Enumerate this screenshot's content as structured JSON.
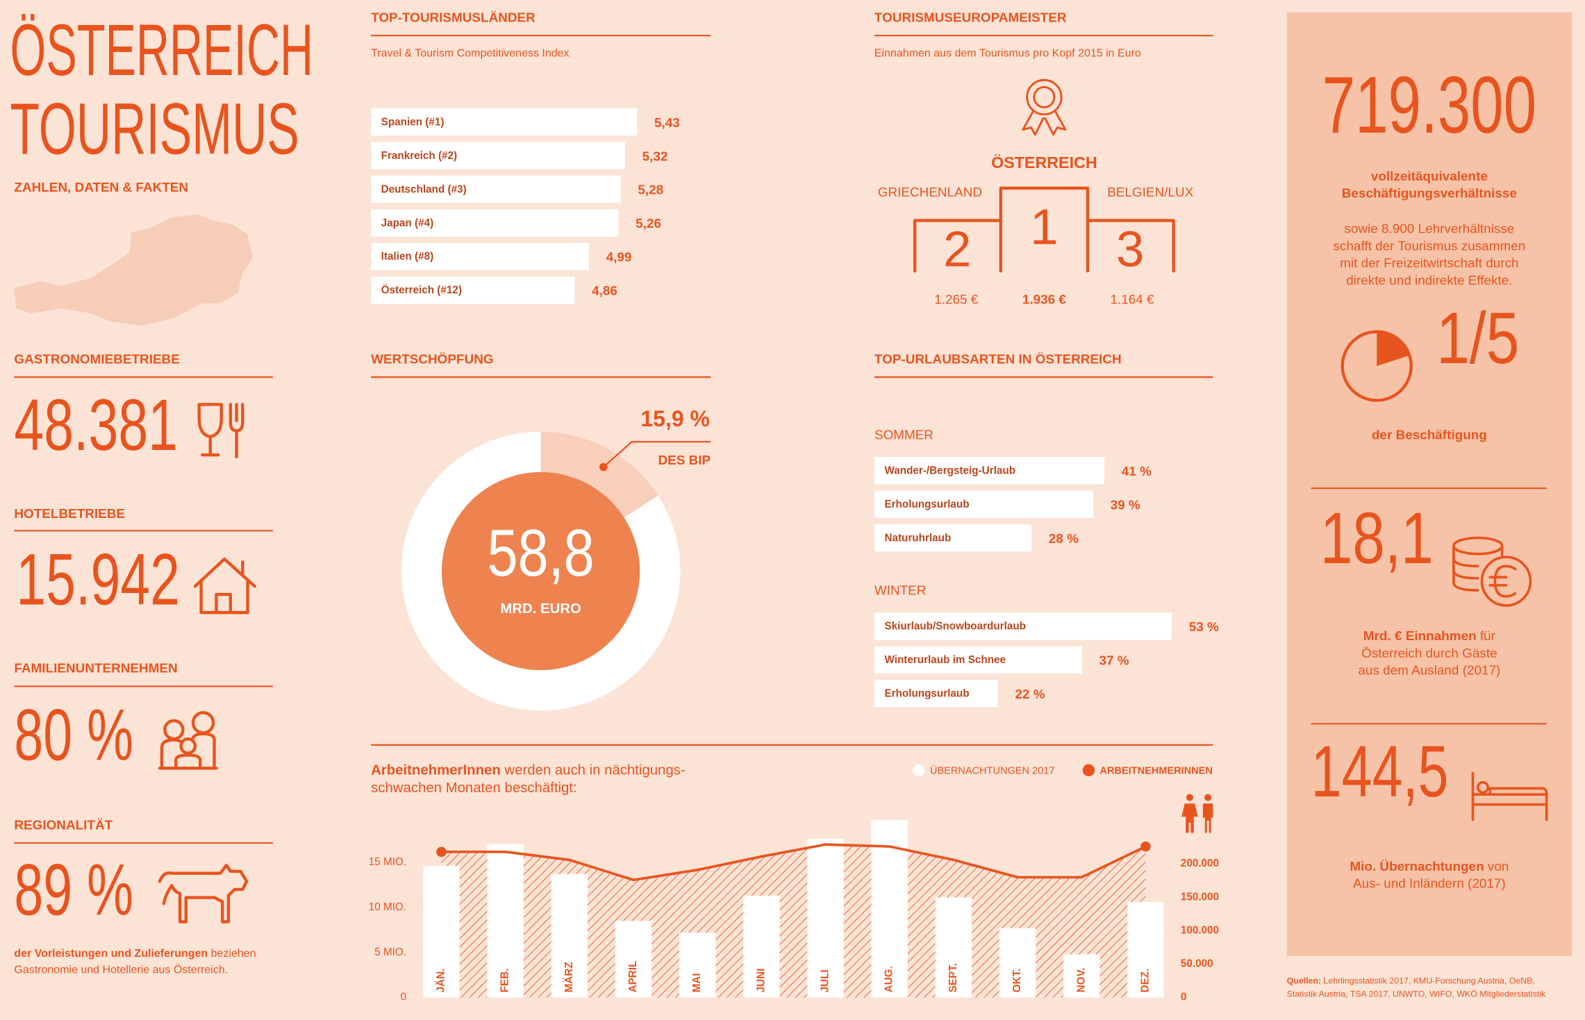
{
  "header": {
    "title_line1": "ÖSTERREICH",
    "title_line2": "TOURISMUS",
    "subtitle": "ZAHLEN, DATEN & FAKTEN"
  },
  "facts": [
    {
      "heading": "GASTRONOMIEBETRIEBE",
      "value": "48.381"
    },
    {
      "heading": "HOTELBETRIEBE",
      "value": "15.942"
    },
    {
      "heading": "FAMILIENUNTERNEHMEN",
      "value": "80 %"
    },
    {
      "heading": "REGIONALITÄT",
      "value": "89 %",
      "note_bold": "der Vorleistungen und Zulieferungen",
      "note_line1": " beziehen",
      "note_line2": "Gastronomie und Hotellerie aus Österreich."
    }
  ],
  "podium": {
    "title": "TOURISMUSEUROPAMEISTER",
    "subtitle": "Einnahmen aus dem Tourismus pro Kopf 2015 in Euro",
    "first": {
      "country": "ÖSTERREICH",
      "rank": "1",
      "amount": "1.936 €"
    },
    "second": {
      "country": "GRIECHENLAND",
      "rank": "2",
      "amount": "1.265 €"
    },
    "third": {
      "country": "BELGIEN/LUX",
      "rank": "3",
      "amount": "1.164 €"
    }
  },
  "side_panel": {
    "employment": {
      "value": "719.300",
      "bold_lines": [
        "vollzeitäquivalente",
        "Beschäftigungsverhältnisse"
      ],
      "lines": [
        "sowie 8.900 Lehrverhältnisse",
        "schafft der Tourismus zusammen",
        "mit der Freizeitwirtschaft durch",
        "direkte und indirekte Effekte."
      ]
    },
    "share": {
      "value": "1/5",
      "label": "der Beschäftigung"
    },
    "revenue": {
      "value": "18,1",
      "bold": "Mrd. € Einnahmen",
      "line1": " für",
      "line2": "Österreich durch Gäste",
      "line3": "aus dem Ausland (2017)"
    },
    "nights": {
      "value": "144,5",
      "bold": "Mio. Übernachtungen",
      "line1": " von",
      "line2": "Aus- und Inländern (2017)"
    },
    "sources_bold": "Quellen:",
    "sources_line1": " Lehrlingsstatistik 2017, KMU-Forschung Austria, OeNB,",
    "sources_line2": "Statistik Austria, TSA 2017, UNWTO, WIFO, WKÖ Mitgliederstatistik"
  },
  "chart_data": [
    {
      "type": "bar",
      "title": "TOP-TOURISMUSLÄNDER",
      "subtitle": "Travel & Tourism Competitiveness Index",
      "categories": [
        "Spanien (#1)",
        "Frankreich (#2)",
        "Deutschland (#3)",
        "Japan (#4)",
        "Italien (#8)",
        "Österreich (#12)"
      ],
      "values": [
        5.43,
        5.32,
        5.28,
        5.26,
        4.99,
        4.86
      ],
      "value_labels": [
        "5,43",
        "5,32",
        "5,28",
        "5,26",
        "4,99",
        "4,86"
      ],
      "color": "#ffffff",
      "xlim": [
        3,
        6
      ]
    },
    {
      "type": "pie",
      "title": "WERTSCHÖPFUNG",
      "categories": [
        "DES BIP",
        null
      ],
      "values": [
        15.9,
        84.1
      ],
      "value_labels": [
        "15,9 %",
        null
      ],
      "colors": [
        "#f8cfb9",
        "#ffffff"
      ],
      "center_value": "58,8",
      "center_label": "MRD. EURO"
    },
    {
      "type": "bar",
      "section_title": "TOP-URLAUBSARTEN IN ÖSTERREICH",
      "title": "SOMMER",
      "categories": [
        "Wander-/Bergsteig-Urlaub",
        "Erholungsurlaub",
        "Naturuhrlaub"
      ],
      "values": [
        41,
        39,
        28
      ],
      "value_labels": [
        "41 %",
        "39 %",
        "28 %"
      ],
      "color": "#ffffff",
      "xlim": [
        0,
        60
      ]
    },
    {
      "type": "bar",
      "title": "WINTER",
      "categories": [
        "Skiurlaub/Snowboardurlaub",
        "Winterurlaub im Schnee",
        "Erholungsurlaub"
      ],
      "values": [
        53,
        37,
        22
      ],
      "value_labels": [
        "53 %",
        "37 %",
        "22 %"
      ],
      "color": "#ffffff",
      "xlim": [
        0,
        60
      ]
    },
    {
      "type": "bar",
      "title_bold": "ArbeitnehmerInnen",
      "title_line1": " werden auch in nächtigungs-",
      "title_line2": "schwachen Monaten beschäftigt:",
      "categories": [
        "JÄN.",
        "FEB.",
        "MÄRZ",
        "APRIL",
        "MAI",
        "JUNI",
        "JULI",
        "AUG.",
        "SEPT.",
        "OKT.",
        "NOV.",
        "DEZ."
      ],
      "series": [
        {
          "name": "ÜBERNACHTUNGEN 2017",
          "color": "#ffffff",
          "type": "bar",
          "values": [
            14600000,
            17000000,
            13700000,
            8500000,
            7200000,
            11300000,
            17600000,
            19700000,
            11100000,
            7700000,
            4800000,
            10600000
          ]
        },
        {
          "name": "ARBEITNEHMERINNEN",
          "color": "#e8541e",
          "type": "line",
          "axis": "y2",
          "values": [
            218000,
            218000,
            206000,
            176000,
            191000,
            211000,
            229000,
            226000,
            206000,
            180000,
            180000,
            226000
          ]
        }
      ],
      "ylim": [
        0,
        20000000
      ],
      "yticks": [
        0,
        {
          "value": 5000000,
          "label": "5 MIO."
        },
        {
          "value": 10000000,
          "label": "10 MIO."
        },
        {
          "value": 15000000,
          "label": "15 MIO."
        }
      ],
      "y2lim": [
        0,
        270000
      ],
      "y2ticks": [
        0,
        {
          "value": 50000,
          "label": "50.000"
        },
        {
          "value": 100000,
          "label": "100.000"
        },
        {
          "value": 150000,
          "label": "150.000"
        },
        {
          "value": 200000,
          "label": "200.000"
        }
      ]
    }
  ]
}
